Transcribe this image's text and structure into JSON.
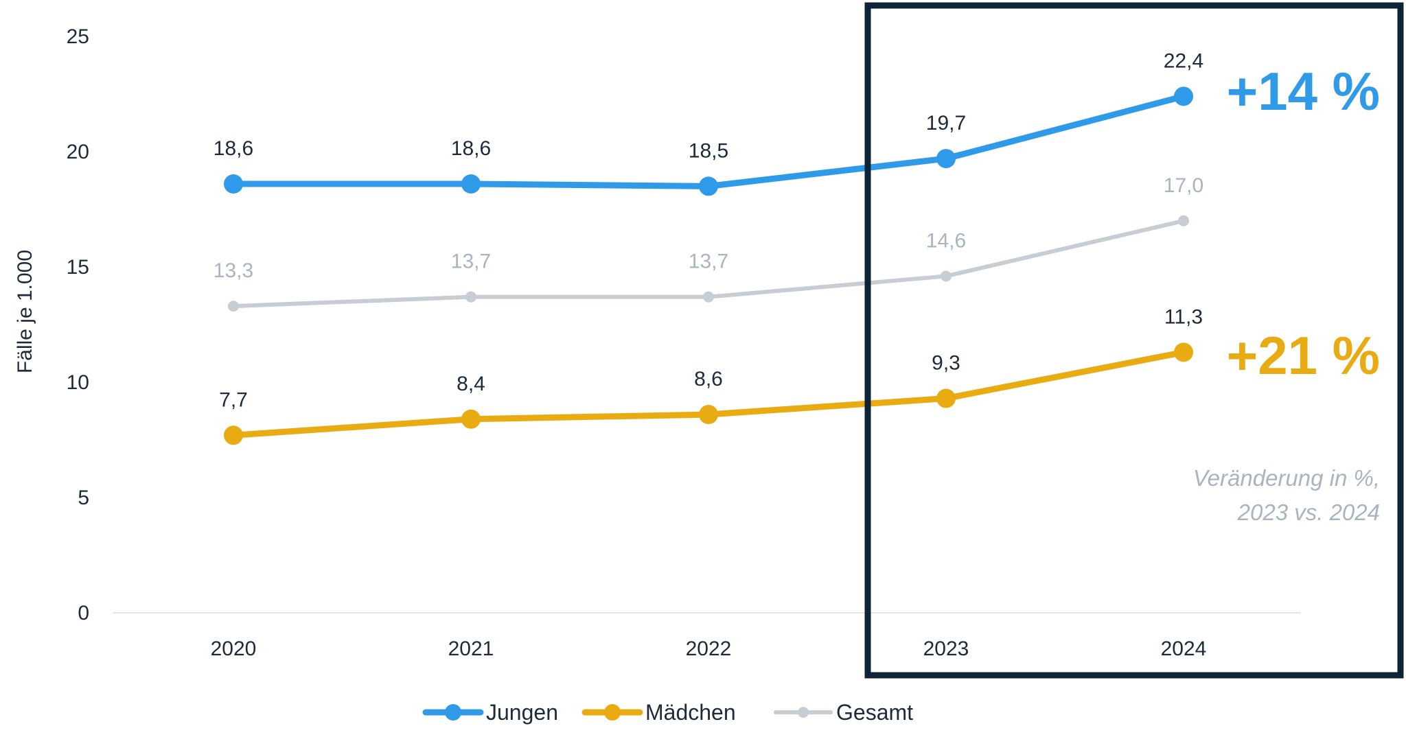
{
  "chart_data": {
    "type": "line",
    "x": [
      "2020",
      "2021",
      "2022",
      "2023",
      "2024"
    ],
    "ylabel": "Fälle je 1.000",
    "ylim": [
      0,
      25
    ],
    "yticks": [
      "0",
      "5",
      "10",
      "15",
      "20",
      "25"
    ],
    "grid": false,
    "legend_position": "bottom",
    "series": [
      {
        "name": "Jungen",
        "color": "#2f9be8",
        "values": [
          18.6,
          18.6,
          18.5,
          19.7,
          22.4
        ],
        "labels": [
          "18,6",
          "18,6",
          "18,5",
          "19,7",
          "22,4"
        ],
        "label_color": "#1d2a3a",
        "change": "+14 %"
      },
      {
        "name": "Gesamt",
        "color": "#c7cdd3",
        "values": [
          13.3,
          13.7,
          13.7,
          14.6,
          17.0
        ],
        "labels": [
          "13,3",
          "13,7",
          "13,7",
          "14,6",
          "17,0"
        ],
        "label_color": "#a9b4bf"
      },
      {
        "name": "Mädchen",
        "color": "#e8ab12",
        "values": [
          7.7,
          8.4,
          8.6,
          9.3,
          11.3
        ],
        "labels": [
          "7,7",
          "8,4",
          "8,6",
          "9,3",
          "11,3"
        ],
        "label_color": "#1d2a3a",
        "change": "+21 %"
      }
    ],
    "legend": [
      "Jungen",
      "Mädchen",
      "Gesamt"
    ],
    "highlight_years": [
      "2023",
      "2024"
    ],
    "annotation": {
      "line1": "Veränderung in %,",
      "line2": "2023 vs. 2024"
    }
  }
}
